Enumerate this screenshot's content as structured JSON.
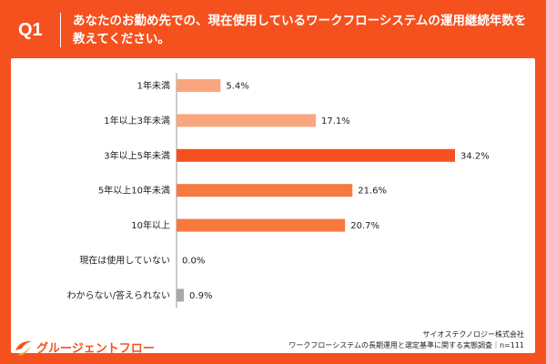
{
  "header": {
    "q_label": "Q1",
    "question": "あなたのお勤め先での、現在使用しているワークフローシステムの運用継続年数を教えてください。"
  },
  "colors": {
    "background": "#f5511e",
    "bar_strong": "#f5511e",
    "bar_mid": "#f7793f",
    "bar_light": "#f9a67e",
    "bar_gray": "#a9a9a9"
  },
  "chart_data": {
    "type": "bar",
    "orientation": "horizontal",
    "categories": [
      "1年未満",
      "1年以上3年未満",
      "3年以上5年未満",
      "5年以上10年未満",
      "10年以上",
      "現在は使用していない",
      "わからない/答えられない"
    ],
    "values": [
      5.4,
      17.1,
      34.2,
      21.6,
      20.7,
      0.0,
      0.9
    ],
    "value_labels": [
      "5.4%",
      "17.1%",
      "34.2%",
      "21.6%",
      "20.7%",
      "0.0%",
      "0.9%"
    ],
    "bar_colors": [
      "#f9a67e",
      "#f9a67e",
      "#f5511e",
      "#f7793f",
      "#f7793f",
      "#a9a9a9",
      "#a9a9a9"
    ],
    "xlim": [
      0,
      34.2
    ],
    "grid": false,
    "title": "",
    "xlabel": "",
    "ylabel": ""
  },
  "footer": {
    "logo_text": "グルージェントフロー",
    "company": "サイオステクノロジー株式会社",
    "survey": "ワークフローシステムの長期運用と選定基準に関する実態調査｜n=111"
  }
}
